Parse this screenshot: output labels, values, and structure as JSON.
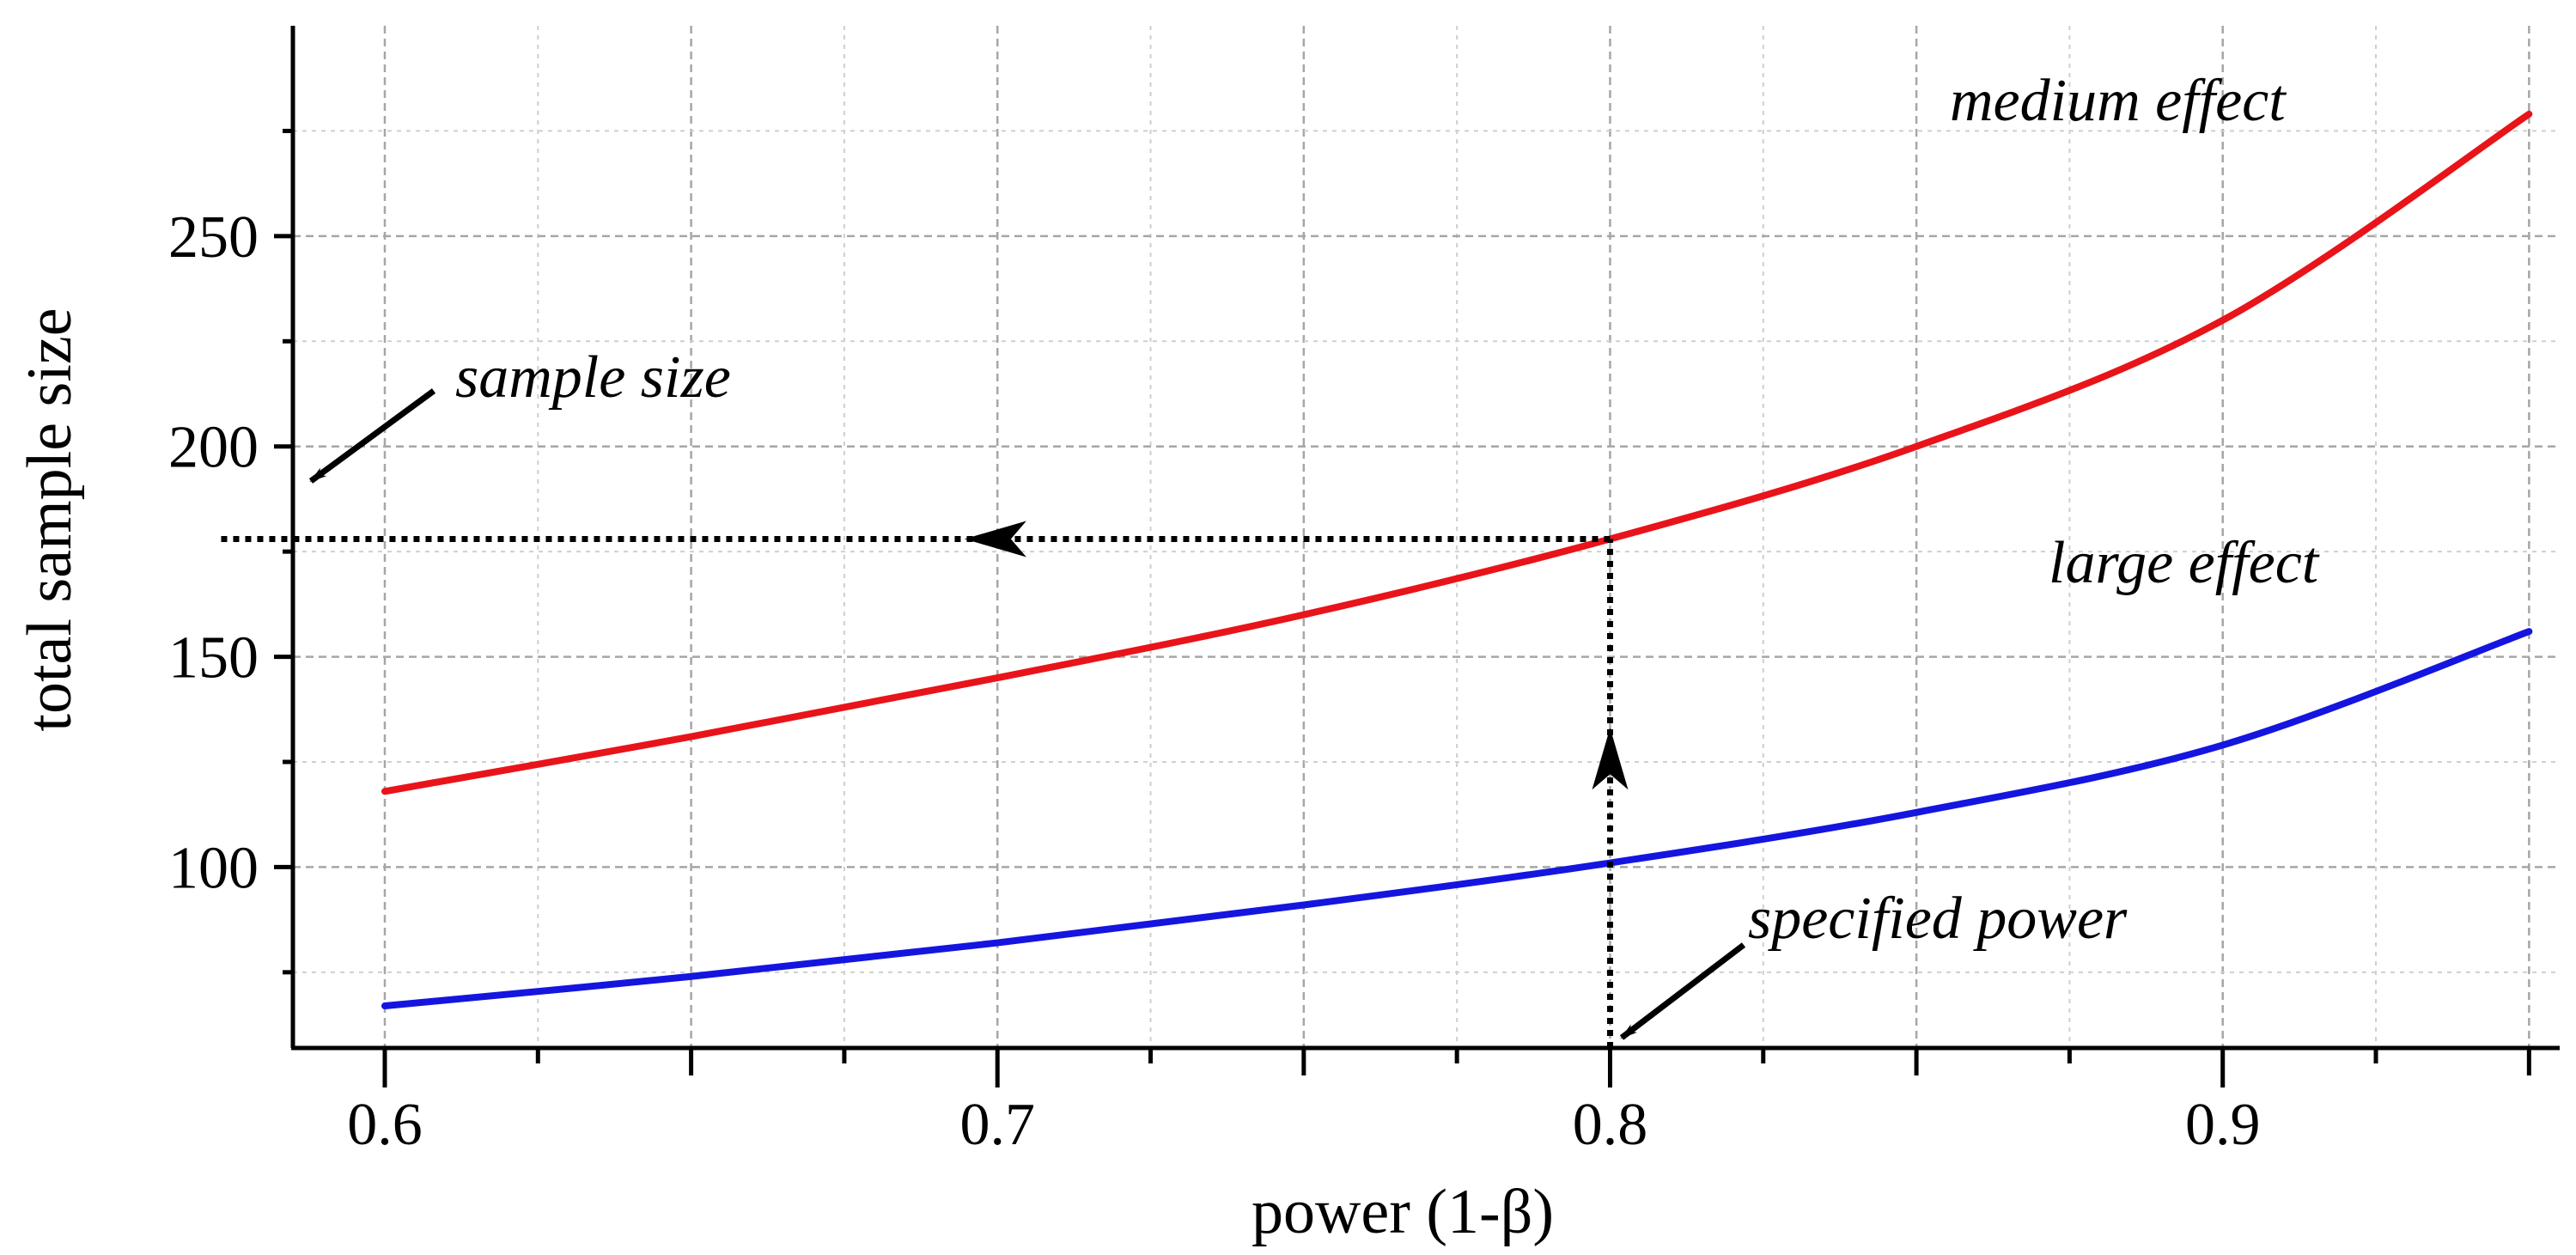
{
  "chart_data": {
    "type": "line",
    "xlabel": "power (1-β)",
    "ylabel": "total sample size",
    "xlim": [
      0.585,
      0.955
    ],
    "ylim": [
      57,
      300
    ],
    "xticks": [
      0.6,
      0.7,
      0.8,
      0.9
    ],
    "xtick_labels": [
      "0.6",
      "0.7",
      "0.8",
      "0.9"
    ],
    "yticks": [
      100,
      150,
      200,
      250
    ],
    "ytick_labels": [
      "100",
      "150",
      "200",
      "250"
    ],
    "grid": true,
    "x": [
      0.6,
      0.65,
      0.7,
      0.75,
      0.8,
      0.85,
      0.9,
      0.95
    ],
    "series": [
      {
        "name": "medium effect",
        "color": "#e8141a",
        "values": [
          118,
          131,
          145,
          160,
          178,
          200,
          230,
          279
        ]
      },
      {
        "name": "large effect",
        "color": "#1515e0",
        "values": [
          67,
          74,
          82,
          91,
          101,
          113,
          129,
          156
        ]
      }
    ],
    "annotations": [
      {
        "text": "medium effect"
      },
      {
        "text": "large effect"
      },
      {
        "text": "sample size"
      },
      {
        "text": "specified power"
      }
    ],
    "guide": {
      "power": 0.8,
      "sample_size": 178
    }
  }
}
